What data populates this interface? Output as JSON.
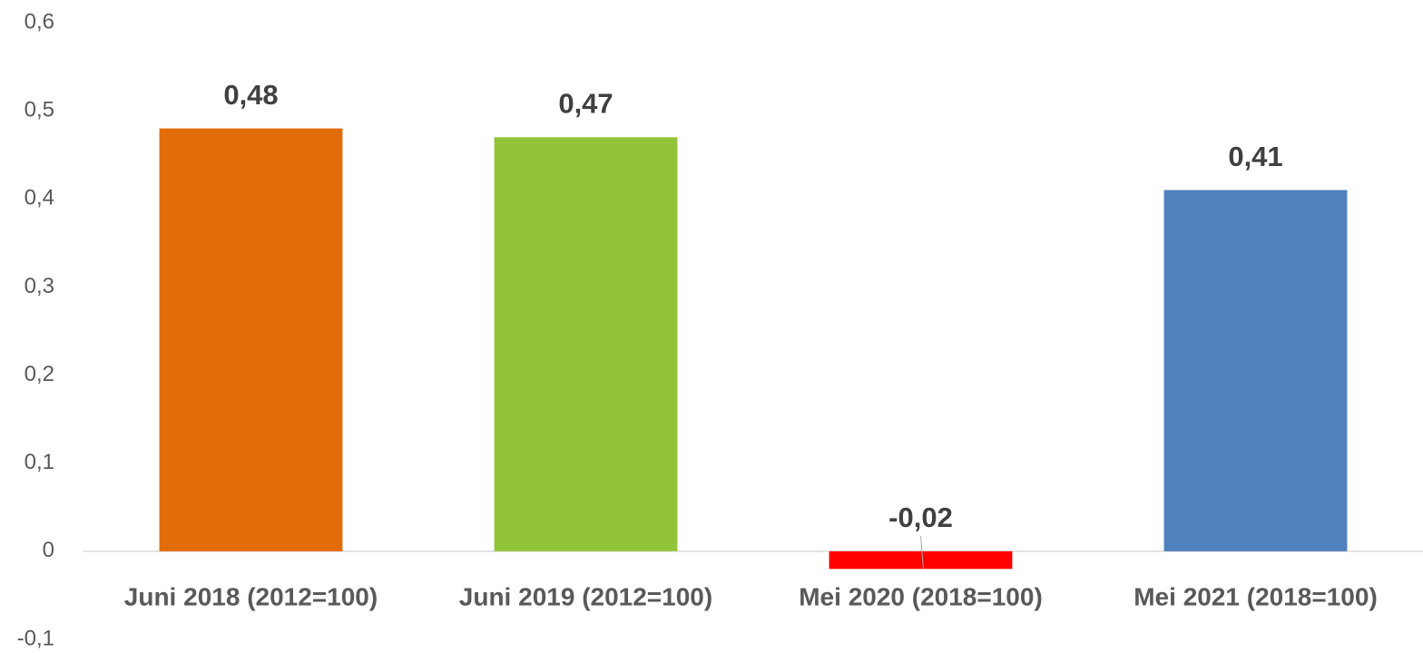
{
  "chart_data": {
    "type": "bar",
    "categories": [
      "Juni 2018 (2012=100)",
      "Juni 2019 (2012=100)",
      "Mei 2020 (2018=100)",
      "Mei 2021 (2018=100)"
    ],
    "values": [
      0.48,
      0.47,
      -0.02,
      0.41
    ],
    "value_labels": [
      "0,48",
      "0,47",
      "-0,02",
      "0,41"
    ],
    "colors": [
      "#e36c0a",
      "#92c43a",
      "#ff0000",
      "#4f81bd"
    ],
    "ylim": [
      -0.1,
      0.6
    ],
    "yticks": [
      {
        "value": -0.1,
        "label": "-0,1"
      },
      0,
      {
        "value": 0.1,
        "label": "0,1"
      },
      {
        "value": 0.2,
        "label": "0,2"
      },
      {
        "value": 0.3,
        "label": "0,3"
      },
      {
        "value": 0.4,
        "label": "0,4"
      },
      {
        "value": 0.5,
        "label": "0,5"
      },
      {
        "value": 0.6,
        "label": "0,6"
      }
    ],
    "grid": false
  }
}
